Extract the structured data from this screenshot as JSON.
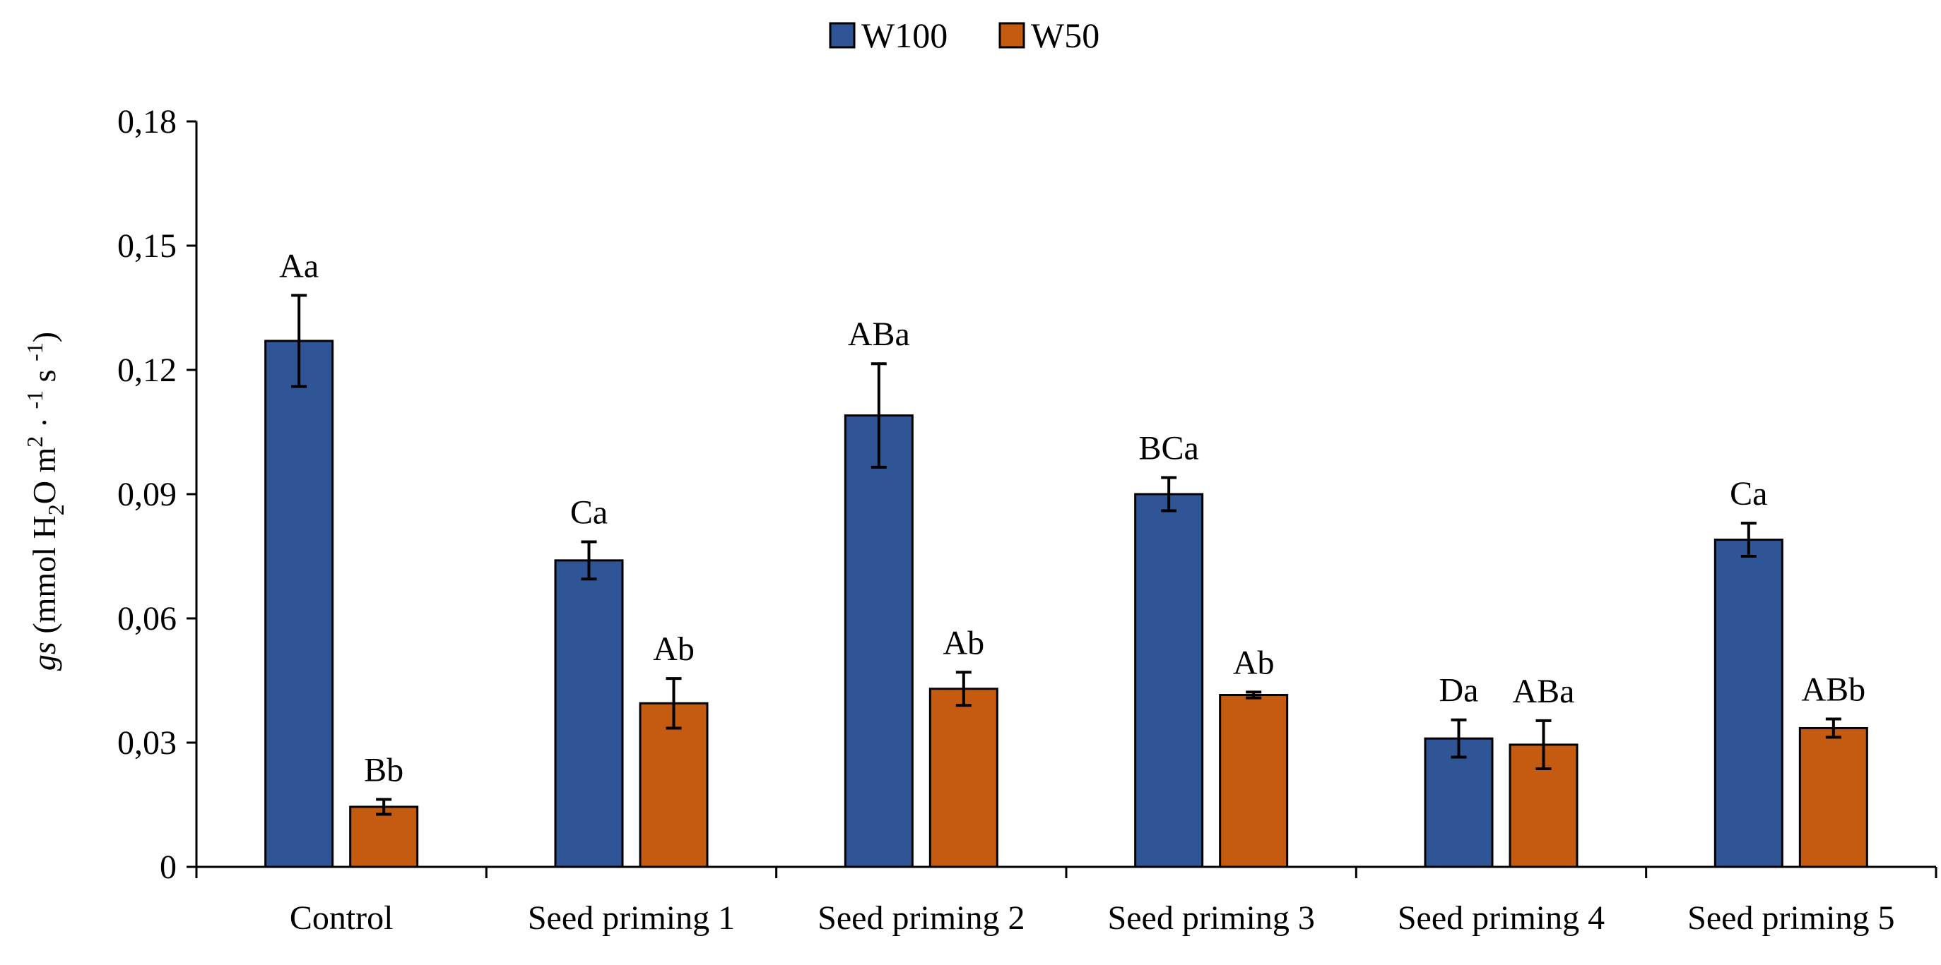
{
  "chart_data": {
    "type": "bar",
    "title": "",
    "xlabel": "",
    "ylabel": {
      "symbol": "gs",
      "text": "(mmol H",
      "sub": "2",
      "text2": "O m",
      "sup1": "2",
      "text3": " · ",
      "sup2": "-1",
      "text4": " s ",
      "sup3": "-1",
      "text5": ")"
    },
    "ylim": [
      0,
      0.18
    ],
    "yticks": [
      0,
      0.03,
      0.06,
      0.09,
      0.12,
      0.15,
      0.18
    ],
    "ytick_labels": [
      "0",
      "0,03",
      "0,06",
      "0,09",
      "0,12",
      "0,15",
      "0,18"
    ],
    "categories": [
      "Control",
      "Seed priming 1",
      "Seed priming 2",
      "Seed priming 3",
      "Seed priming 4",
      "Seed priming 5"
    ],
    "legend_position": "top-center",
    "series": [
      {
        "name": "W100",
        "color": "#2F5597",
        "values": [
          0.127,
          0.074,
          0.109,
          0.09,
          0.031,
          0.079
        ],
        "errors": [
          0.011,
          0.0045,
          0.0125,
          0.004,
          0.0045,
          0.004
        ],
        "labels": [
          "Aa",
          "Ca",
          "ABa",
          "BCa",
          "Da",
          "Ca"
        ]
      },
      {
        "name": "W50",
        "color": "#C55A11",
        "values": [
          0.0145,
          0.0395,
          0.043,
          0.0415,
          0.0295,
          0.0335
        ],
        "errors": [
          0.0018,
          0.006,
          0.004,
          0.0007,
          0.0058,
          0.0022
        ],
        "labels": [
          "Bb",
          "Ab",
          "Ab",
          "Ab",
          "ABa",
          "ABb"
        ]
      }
    ]
  }
}
